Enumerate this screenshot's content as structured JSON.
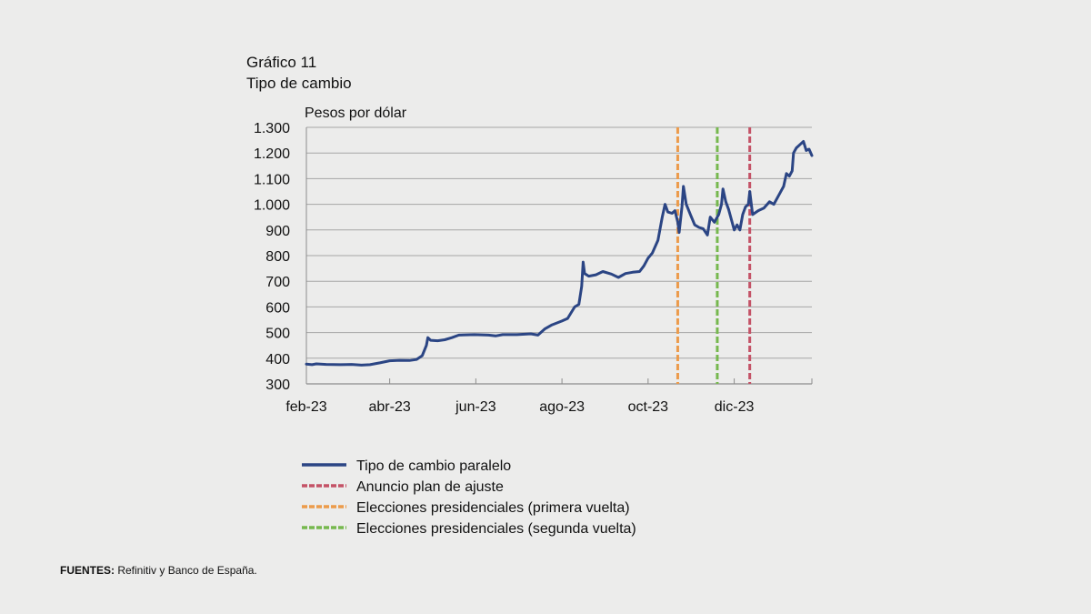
{
  "chart_data": {
    "type": "line",
    "title": "Gráfico 11",
    "subtitle": "Tipo de cambio",
    "ylabel": "Pesos por dólar",
    "xlabel": "",
    "ylim": [
      300,
      1300
    ],
    "yticks": [
      "300",
      "400",
      "500",
      "600",
      "700",
      "800",
      "900",
      "1.000",
      "1.100",
      "1.200",
      "1.300"
    ],
    "ytick_values": [
      300,
      400,
      500,
      600,
      700,
      800,
      900,
      1000,
      1100,
      1200,
      1300
    ],
    "xlim": [
      "2023-02-01",
      "2024-01-25"
    ],
    "xticks": [
      {
        "label": "feb-23",
        "date": "2023-02-01"
      },
      {
        "label": "abr-23",
        "date": "2023-04-01"
      },
      {
        "label": "jun-23",
        "date": "2023-06-01"
      },
      {
        "label": "ago-23",
        "date": "2023-08-01"
      },
      {
        "label": "oct-23",
        "date": "2023-10-01"
      },
      {
        "label": "dic-23",
        "date": "2023-12-01"
      }
    ],
    "grid": true,
    "legend_position": "bottom",
    "series": [
      {
        "name": "Tipo de cambio paralelo",
        "color": "#2b4584",
        "points": [
          [
            "2023-02-01",
            377
          ],
          [
            "2023-02-05",
            375
          ],
          [
            "2023-02-08",
            378
          ],
          [
            "2023-02-15",
            376
          ],
          [
            "2023-02-25",
            375
          ],
          [
            "2023-03-05",
            376
          ],
          [
            "2023-03-12",
            373
          ],
          [
            "2023-03-18",
            375
          ],
          [
            "2023-03-25",
            382
          ],
          [
            "2023-04-01",
            390
          ],
          [
            "2023-04-08",
            392
          ],
          [
            "2023-04-15",
            391
          ],
          [
            "2023-04-20",
            395
          ],
          [
            "2023-04-24",
            410
          ],
          [
            "2023-04-27",
            450
          ],
          [
            "2023-04-28",
            480
          ],
          [
            "2023-04-30",
            470
          ],
          [
            "2023-05-05",
            468
          ],
          [
            "2023-05-10",
            472
          ],
          [
            "2023-05-15",
            480
          ],
          [
            "2023-05-20",
            490
          ],
          [
            "2023-05-31",
            492
          ],
          [
            "2023-06-10",
            490
          ],
          [
            "2023-06-15",
            487
          ],
          [
            "2023-06-20",
            492
          ],
          [
            "2023-06-30",
            492
          ],
          [
            "2023-07-10",
            495
          ],
          [
            "2023-07-15",
            490
          ],
          [
            "2023-07-20",
            515
          ],
          [
            "2023-07-25",
            530
          ],
          [
            "2023-08-01",
            545
          ],
          [
            "2023-08-05",
            555
          ],
          [
            "2023-08-10",
            600
          ],
          [
            "2023-08-13",
            610
          ],
          [
            "2023-08-15",
            680
          ],
          [
            "2023-08-16",
            775
          ],
          [
            "2023-08-17",
            730
          ],
          [
            "2023-08-20",
            720
          ],
          [
            "2023-08-25",
            725
          ],
          [
            "2023-08-30",
            738
          ],
          [
            "2023-09-05",
            728
          ],
          [
            "2023-09-10",
            715
          ],
          [
            "2023-09-15",
            730
          ],
          [
            "2023-09-20",
            735
          ],
          [
            "2023-09-25",
            738
          ],
          [
            "2023-09-28",
            760
          ],
          [
            "2023-10-01",
            790
          ],
          [
            "2023-10-04",
            810
          ],
          [
            "2023-10-08",
            860
          ],
          [
            "2023-10-11",
            950
          ],
          [
            "2023-10-13",
            1000
          ],
          [
            "2023-10-15",
            970
          ],
          [
            "2023-10-18",
            965
          ],
          [
            "2023-10-20",
            975
          ],
          [
            "2023-10-22",
            930
          ],
          [
            "2023-10-23",
            890
          ],
          [
            "2023-10-25",
            990
          ],
          [
            "2023-10-26",
            1070
          ],
          [
            "2023-10-28",
            1000
          ],
          [
            "2023-10-31",
            960
          ],
          [
            "2023-11-03",
            920
          ],
          [
            "2023-11-06",
            910
          ],
          [
            "2023-11-09",
            905
          ],
          [
            "2023-11-12",
            880
          ],
          [
            "2023-11-14",
            950
          ],
          [
            "2023-11-17",
            930
          ],
          [
            "2023-11-19",
            950
          ],
          [
            "2023-11-20",
            960
          ],
          [
            "2023-11-22",
            1000
          ],
          [
            "2023-11-23",
            1060
          ],
          [
            "2023-11-25",
            1010
          ],
          [
            "2023-11-27",
            980
          ],
          [
            "2023-11-29",
            940
          ],
          [
            "2023-12-01",
            900
          ],
          [
            "2023-12-03",
            920
          ],
          [
            "2023-12-05",
            900
          ],
          [
            "2023-12-07",
            960
          ],
          [
            "2023-12-09",
            990
          ],
          [
            "2023-12-11",
            1000
          ],
          [
            "2023-12-12",
            1050
          ],
          [
            "2023-12-14",
            960
          ],
          [
            "2023-12-18",
            975
          ],
          [
            "2023-12-22",
            985
          ],
          [
            "2023-12-26",
            1010
          ],
          [
            "2023-12-29",
            1000
          ],
          [
            "2024-01-02",
            1040
          ],
          [
            "2024-01-05",
            1070
          ],
          [
            "2024-01-07",
            1120
          ],
          [
            "2024-01-09",
            1110
          ],
          [
            "2024-01-11",
            1130
          ],
          [
            "2024-01-12",
            1200
          ],
          [
            "2024-01-14",
            1220
          ],
          [
            "2024-01-17",
            1235
          ],
          [
            "2024-01-19",
            1245
          ],
          [
            "2024-01-21",
            1210
          ],
          [
            "2024-01-23",
            1215
          ],
          [
            "2024-01-25",
            1190
          ]
        ]
      },
      {
        "name": "Anuncio plan de ajuste",
        "color": "#c45266",
        "dashed": true,
        "date": "2023-12-12"
      },
      {
        "name": "Elecciones presidenciales (primera vuelta)",
        "color": "#ec9b4b",
        "dashed": true,
        "date": "2023-10-22"
      },
      {
        "name": "Elecciones presidenciales (segunda vuelta)",
        "color": "#76b84e",
        "dashed": true,
        "date": "2023-11-19"
      }
    ]
  },
  "sources": {
    "label": "FUENTES:",
    "text": "Refinitiv y Banco de España."
  }
}
